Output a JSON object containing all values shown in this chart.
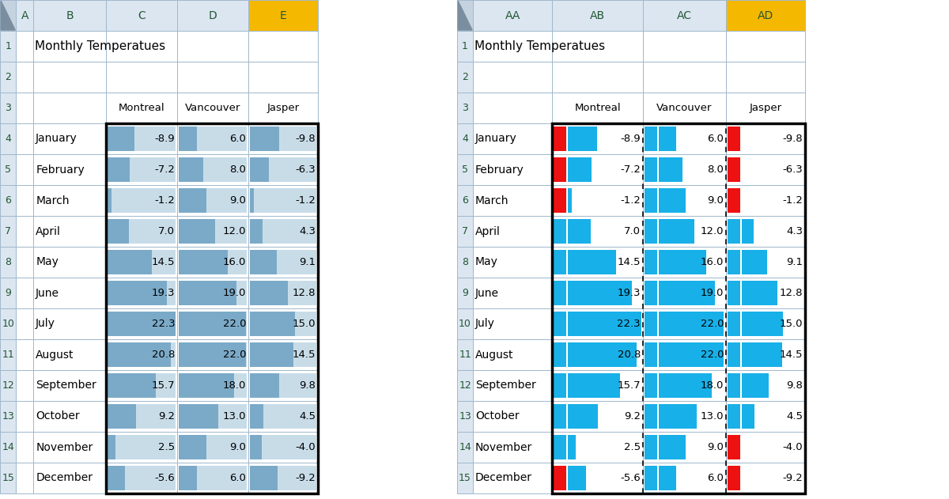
{
  "months": [
    "January",
    "February",
    "March",
    "April",
    "May",
    "June",
    "July",
    "August",
    "September",
    "October",
    "November",
    "December"
  ],
  "montreal": [
    -8.9,
    -7.2,
    -1.2,
    7.0,
    14.5,
    19.3,
    22.3,
    20.8,
    15.7,
    9.2,
    2.5,
    -5.6
  ],
  "vancouver": [
    6.0,
    8.0,
    9.0,
    12.0,
    16.0,
    19.0,
    22.0,
    22.0,
    18.0,
    13.0,
    9.0,
    6.0
  ],
  "jasper": [
    -9.8,
    -6.3,
    -1.2,
    4.3,
    9.1,
    12.8,
    15.0,
    14.5,
    9.8,
    4.5,
    -4.0,
    -9.2
  ],
  "title": "Monthly Temperatues",
  "col_header_bg": "#dce6f1",
  "selected_col_bg": "#f5b800",
  "row_header_bg": "#dce6f1",
  "corner_bg": "#c5d3e0",
  "grid_color": "#a0b8cc",
  "bar_bg_blue": "#b8d0e8",
  "bar_fill_blue": "#6baed6",
  "icon_red": "#ee1111",
  "icon_blue": "#1bb0e8",
  "data_bar_cyan": "#18b0e8",
  "text_green": "#215732",
  "max_val": 22.3
}
